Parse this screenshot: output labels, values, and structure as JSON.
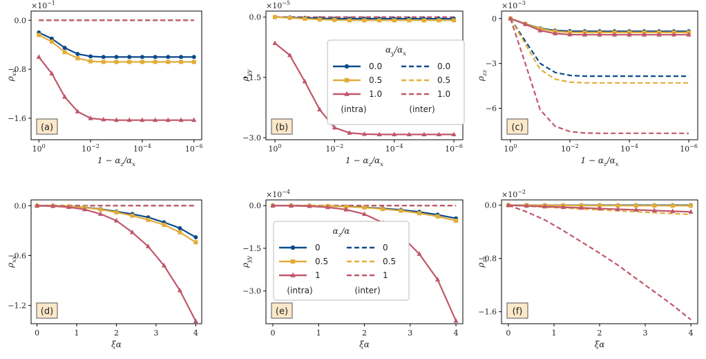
{
  "colors": {
    "blue": "#0b4a8b",
    "gold": "#e1ad3a",
    "red": "#c0566a",
    "panel_tag_bg": "#fbe8c9"
  },
  "chart_data": [
    {
      "type": "line",
      "panel": "(a)",
      "x_scale": "log-reversed",
      "xlim": [
        1,
        1e-06
      ],
      "x_ticks": [
        "10^0",
        "10^-2",
        "10^-4",
        "10^-6"
      ],
      "xlabel": "1 − α_z/α_x",
      "ylabel": "ρ_xx",
      "offset_label": "×10^-1",
      "y_ticks": [
        "0.0",
        "-0.8",
        "-1.6"
      ],
      "ylim": [
        -1.95,
        0.15
      ],
      "x": [
        1,
        0.316,
        0.1,
        0.0316,
        0.01,
        0.00316,
        0.001,
        0.000316,
        0.0001,
        3.16e-05,
        1e-05,
        3.16e-06,
        1e-06
      ],
      "series": [
        {
          "name": "0.0",
          "kind": "intra",
          "color": "blue",
          "marker": "circle",
          "values": [
            -0.2,
            -0.3,
            -0.45,
            -0.55,
            -0.59,
            -0.6,
            -0.6,
            -0.6,
            -0.6,
            -0.6,
            -0.6,
            -0.6,
            -0.6
          ]
        },
        {
          "name": "0.5",
          "kind": "intra",
          "color": "gold",
          "marker": "square",
          "values": [
            -0.24,
            -0.35,
            -0.52,
            -0.62,
            -0.67,
            -0.68,
            -0.68,
            -0.68,
            -0.68,
            -0.68,
            -0.68,
            -0.68,
            -0.68
          ]
        },
        {
          "name": "1.0",
          "kind": "intra",
          "color": "red",
          "marker": "triangle",
          "values": [
            -0.6,
            -0.87,
            -1.25,
            -1.49,
            -1.6,
            -1.62,
            -1.63,
            -1.63,
            -1.63,
            -1.63,
            -1.63,
            -1.63,
            -1.63
          ]
        },
        {
          "name": "0.0",
          "kind": "inter",
          "color": "blue",
          "values": [
            0,
            0,
            0,
            0,
            0,
            0,
            0,
            0,
            0,
            0,
            0,
            0,
            0
          ]
        },
        {
          "name": "0.5",
          "kind": "inter",
          "color": "gold",
          "values": [
            0,
            0,
            0,
            0,
            0,
            0,
            0,
            0,
            0,
            0,
            0,
            0,
            0
          ]
        },
        {
          "name": "1.0",
          "kind": "inter",
          "color": "red",
          "values": [
            0,
            0,
            0,
            0,
            0,
            0,
            0,
            0,
            0,
            0,
            0,
            0,
            0
          ]
        }
      ]
    },
    {
      "type": "line",
      "panel": "(b)",
      "x_scale": "log-reversed",
      "xlim": [
        1,
        1e-06
      ],
      "x_ticks": [
        "10^0",
        "10^-2",
        "10^-4",
        "10^-6"
      ],
      "xlabel": "1 − α_z/α_x",
      "ylabel": "ρ_yy",
      "offset_label": "×10^-5",
      "y_ticks": [
        "0.0",
        "-1.5",
        "-3.0"
      ],
      "ylim": [
        -3.05,
        0.15
      ],
      "x": [
        1,
        0.316,
        0.1,
        0.0316,
        0.01,
        0.00316,
        0.001,
        0.000316,
        0.0001,
        3.16e-05,
        1e-05,
        3.16e-06,
        1e-06
      ],
      "legend": {
        "title": "α_y/α_x",
        "intra_label": "(intra)",
        "inter_label": "(inter)",
        "position": "center-right"
      },
      "series": [
        {
          "name": "0.0",
          "kind": "intra",
          "color": "blue",
          "marker": "circle",
          "values": [
            0,
            -0.01,
            -0.02,
            -0.03,
            -0.04,
            -0.04,
            -0.04,
            -0.04,
            -0.04,
            -0.04,
            -0.04,
            -0.04,
            -0.04
          ]
        },
        {
          "name": "0.5",
          "kind": "intra",
          "color": "gold",
          "marker": "square",
          "values": [
            0,
            -0.02,
            -0.04,
            -0.06,
            -0.07,
            -0.08,
            -0.08,
            -0.08,
            -0.08,
            -0.08,
            -0.08,
            -0.08,
            -0.08
          ]
        },
        {
          "name": "1.0",
          "kind": "intra",
          "color": "red",
          "marker": "triangle",
          "values": [
            -0.65,
            -0.95,
            -1.6,
            -2.3,
            -2.75,
            -2.88,
            -2.91,
            -2.92,
            -2.92,
            -2.92,
            -2.92,
            -2.92,
            -2.92
          ]
        },
        {
          "name": "0.0",
          "kind": "inter",
          "color": "blue",
          "values": [
            0,
            0,
            0,
            0,
            0,
            0,
            0,
            0,
            0,
            0,
            0,
            0,
            0
          ]
        },
        {
          "name": "0.5",
          "kind": "inter",
          "color": "gold",
          "values": [
            0,
            0,
            0,
            0,
            0,
            0,
            0,
            0,
            0,
            0,
            0,
            0,
            0
          ]
        },
        {
          "name": "1.0",
          "kind": "inter",
          "color": "red",
          "values": [
            0,
            0,
            0,
            0,
            0,
            0,
            0,
            0,
            0,
            0,
            0,
            0,
            0
          ]
        }
      ]
    },
    {
      "type": "line",
      "panel": "(c)",
      "x_scale": "log-reversed",
      "xlim": [
        1,
        1e-06
      ],
      "x_ticks": [
        "10^0",
        "10^-2",
        "10^-4",
        "10^-6"
      ],
      "xlabel": "1 − α_z/α_x",
      "ylabel": "ρ_zz",
      "offset_label": "×10^-3",
      "y_ticks": [
        "0",
        "-3",
        "-6"
      ],
      "ylim": [
        -8.1,
        0.5
      ],
      "x": [
        1,
        0.316,
        0.1,
        0.0316,
        0.01,
        0.00316,
        0.001,
        0.000316,
        0.0001,
        3.16e-05,
        1e-05,
        3.16e-06,
        1e-06
      ],
      "series": [
        {
          "name": "0.0",
          "kind": "intra",
          "color": "blue",
          "marker": "circle",
          "values": [
            0,
            -0.35,
            -0.65,
            -0.8,
            -0.84,
            -0.85,
            -0.85,
            -0.85,
            -0.85,
            -0.85,
            -0.85,
            -0.85,
            -0.85
          ]
        },
        {
          "name": "0.5",
          "kind": "intra",
          "color": "gold",
          "marker": "square",
          "values": [
            0,
            -0.36,
            -0.68,
            -0.86,
            -0.92,
            -0.93,
            -0.93,
            -0.93,
            -0.93,
            -0.93,
            -0.93,
            -0.93,
            -0.93
          ]
        },
        {
          "name": "1.0",
          "kind": "intra",
          "color": "red",
          "marker": "triangle",
          "values": [
            0,
            -0.38,
            -0.8,
            -1.0,
            -1.07,
            -1.08,
            -1.08,
            -1.08,
            -1.08,
            -1.08,
            -1.08,
            -1.08,
            -1.08
          ]
        },
        {
          "name": "0.0",
          "kind": "inter",
          "color": "blue",
          "values": [
            0,
            -1.5,
            -3.0,
            -3.6,
            -3.8,
            -3.85,
            -3.85,
            -3.85,
            -3.85,
            -3.85,
            -3.85,
            -3.85,
            -3.85
          ]
        },
        {
          "name": "0.5",
          "kind": "inter",
          "color": "gold",
          "values": [
            0,
            -1.7,
            -3.4,
            -4.05,
            -4.25,
            -4.3,
            -4.3,
            -4.3,
            -4.3,
            -4.3,
            -4.3,
            -4.3,
            -4.3
          ]
        },
        {
          "name": "1.0",
          "kind": "inter",
          "color": "red",
          "values": [
            0,
            -3.0,
            -6.1,
            -7.2,
            -7.55,
            -7.65,
            -7.67,
            -7.67,
            -7.67,
            -7.67,
            -7.67,
            -7.67,
            -7.67
          ]
        }
      ]
    },
    {
      "type": "line",
      "panel": "(d)",
      "x_scale": "linear",
      "xlim": [
        -0.15,
        4.15
      ],
      "x_ticks": [
        "0",
        "1",
        "2",
        "3",
        "4"
      ],
      "xlabel": "ξα",
      "ylabel": "ρ_xx",
      "y_ticks": [
        "0.0",
        "-0.6",
        "-1.2"
      ],
      "ylim": [
        -1.42,
        0.07
      ],
      "x": [
        0,
        0.4,
        0.8,
        1.2,
        1.6,
        2.0,
        2.4,
        2.8,
        3.2,
        3.6,
        4.0
      ],
      "series": [
        {
          "name": "0",
          "kind": "intra",
          "color": "blue",
          "marker": "circle",
          "values": [
            0,
            -0.002,
            -0.008,
            -0.02,
            -0.04,
            -0.07,
            -0.1,
            -0.14,
            -0.2,
            -0.27,
            -0.38
          ]
        },
        {
          "name": "0.5",
          "kind": "intra",
          "color": "gold",
          "marker": "square",
          "values": [
            0,
            -0.002,
            -0.009,
            -0.022,
            -0.045,
            -0.08,
            -0.12,
            -0.17,
            -0.23,
            -0.32,
            -0.44
          ]
        },
        {
          "name": "1",
          "kind": "intra",
          "color": "red",
          "marker": "triangle",
          "values": [
            0,
            -0.004,
            -0.017,
            -0.045,
            -0.1,
            -0.18,
            -0.32,
            -0.49,
            -0.72,
            -1.02,
            -1.39
          ]
        },
        {
          "name": "0",
          "kind": "inter",
          "color": "blue",
          "values": [
            0,
            0,
            0,
            0,
            0,
            0,
            0,
            0,
            0,
            0,
            0
          ]
        },
        {
          "name": "0.5",
          "kind": "inter",
          "color": "gold",
          "values": [
            0,
            0,
            0,
            0,
            0,
            0,
            0,
            0,
            0,
            0,
            0
          ]
        },
        {
          "name": "1",
          "kind": "inter",
          "color": "red",
          "values": [
            0,
            0,
            0,
            0,
            0,
            0,
            0,
            0,
            0,
            0,
            0
          ]
        }
      ]
    },
    {
      "type": "line",
      "panel": "(e)",
      "x_scale": "linear",
      "xlim": [
        -0.15,
        4.15
      ],
      "x_ticks": [
        "0",
        "1",
        "2",
        "3",
        "4"
      ],
      "xlabel": "ξα",
      "ylabel": "ρ_yy",
      "offset_label": "×10^-4",
      "y_ticks": [
        "0.0",
        "-1.5",
        "-3.0"
      ],
      "ylim": [
        -4.15,
        0.2
      ],
      "x": [
        0,
        0.4,
        0.8,
        1.2,
        1.6,
        2.0,
        2.4,
        2.8,
        3.2,
        3.6,
        4.0
      ],
      "legend": {
        "title": "α_z/α",
        "intra_label": "(intra)",
        "inter_label": "(inter)",
        "position": "center-left"
      },
      "series": [
        {
          "name": "0",
          "kind": "intra",
          "color": "blue",
          "marker": "circle",
          "values": [
            0,
            -0.002,
            -0.006,
            -0.015,
            -0.03,
            -0.06,
            -0.1,
            -0.15,
            -0.22,
            -0.32,
            -0.45
          ]
        },
        {
          "name": "0.5",
          "kind": "intra",
          "color": "gold",
          "marker": "square",
          "values": [
            0,
            -0.002,
            -0.007,
            -0.017,
            -0.035,
            -0.07,
            -0.12,
            -0.18,
            -0.27,
            -0.38,
            -0.53
          ]
        },
        {
          "name": "1",
          "kind": "intra",
          "color": "red",
          "marker": "triangle",
          "values": [
            0,
            -0.005,
            -0.02,
            -0.06,
            -0.14,
            -0.3,
            -0.6,
            -1.05,
            -1.7,
            -2.6,
            -4.05
          ]
        },
        {
          "name": "0",
          "kind": "inter",
          "color": "blue",
          "values": [
            0,
            0,
            0,
            0,
            0,
            0,
            0,
            0,
            0,
            0,
            0
          ]
        },
        {
          "name": "0.5",
          "kind": "inter",
          "color": "gold",
          "values": [
            0,
            0,
            0,
            0,
            0,
            0,
            0,
            0,
            0,
            0,
            0
          ]
        },
        {
          "name": "1",
          "kind": "inter",
          "color": "red",
          "values": [
            0,
            0,
            0,
            0,
            0,
            0,
            0,
            0,
            0,
            0,
            0
          ]
        }
      ]
    },
    {
      "type": "line",
      "panel": "(f)",
      "x_scale": "linear",
      "xlim": [
        -0.15,
        4.15
      ],
      "x_ticks": [
        "0",
        "1",
        "2",
        "3",
        "4"
      ],
      "xlabel": "ξα",
      "ylabel": "ρ_zz",
      "offset_label": "×10^-2",
      "y_ticks": [
        "0.0",
        "-0.8",
        "-1.6"
      ],
      "ylim": [
        -1.78,
        0.08
      ],
      "x": [
        0,
        0.4,
        0.8,
        1.2,
        1.6,
        2.0,
        2.4,
        2.8,
        3.2,
        3.6,
        4.0
      ],
      "series": [
        {
          "name": "0",
          "kind": "intra",
          "color": "blue",
          "marker": "circle",
          "values": [
            0,
            0,
            0,
            0,
            0,
            0,
            0,
            0,
            0,
            0,
            0
          ]
        },
        {
          "name": "0.5",
          "kind": "intra",
          "color": "gold",
          "marker": "square",
          "values": [
            0,
            -0.001,
            -0.002,
            -0.003,
            -0.004,
            -0.005,
            -0.005,
            -0.006,
            -0.006,
            -0.007,
            -0.007
          ]
        },
        {
          "name": "1",
          "kind": "intra",
          "color": "red",
          "marker": "triangle",
          "values": [
            0,
            -0.01,
            -0.02,
            -0.03,
            -0.04,
            -0.05,
            -0.06,
            -0.07,
            -0.08,
            -0.09,
            -0.1
          ]
        },
        {
          "name": "0",
          "kind": "inter",
          "color": "blue",
          "values": [
            0,
            0,
            0,
            0,
            0,
            0,
            0,
            0,
            0,
            0,
            0
          ]
        },
        {
          "name": "0.5",
          "kind": "inter",
          "color": "gold",
          "values": [
            0,
            -0.014,
            -0.028,
            -0.042,
            -0.056,
            -0.07,
            -0.084,
            -0.098,
            -0.112,
            -0.126,
            -0.14
          ]
        },
        {
          "name": "1",
          "kind": "inter",
          "color": "red",
          "values": [
            0,
            -0.1,
            -0.22,
            -0.38,
            -0.55,
            -0.72,
            -0.9,
            -1.1,
            -1.3,
            -1.5,
            -1.72
          ]
        }
      ]
    }
  ]
}
